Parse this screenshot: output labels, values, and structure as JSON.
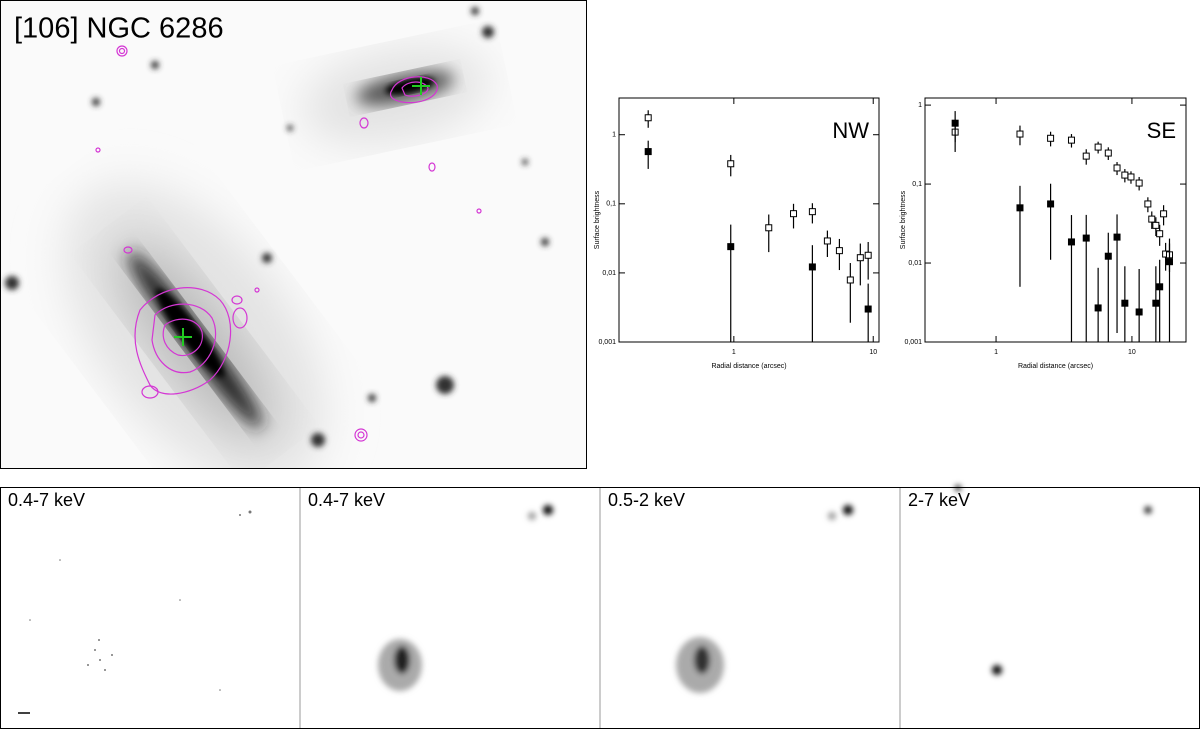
{
  "image_panel": {
    "title": "[106] NGC 6286"
  },
  "bottom_panels": {
    "labels": [
      "0.4-7 keV",
      "0.4-7 keV",
      "0.5-2 keV",
      "2-7 keV"
    ]
  },
  "chart_data": [
    {
      "type": "scatter",
      "title": "NW",
      "x_label": "Radial distance (arcsec)",
      "y_label": "Surface brightness",
      "log_x": true,
      "log_y": true,
      "xlim": [
        0.15,
        11
      ],
      "ylim": [
        0.001,
        3.4
      ],
      "xticks": [
        1,
        10
      ],
      "yticks": [
        {
          "value": 0.001,
          "label": "0,001"
        },
        {
          "value": 0.01,
          "label": "0,01"
        },
        {
          "value": 0.1,
          "label": "0,1"
        },
        1
      ],
      "series": [
        {
          "marker": "open-square",
          "color": "#000000",
          "x": [
            0.243,
            0.95,
            1.78,
            2.68,
            3.66,
            4.69,
            5.72,
            6.85,
            8.08,
            9.2
          ],
          "values": [
            1.76,
            0.38,
            0.045,
            0.072,
            0.077,
            0.029,
            0.021,
            0.0079,
            0.0166,
            0.018
          ],
          "errors": [
            0.5,
            0.13,
            0.025,
            0.028,
            0.025,
            0.012,
            0.01,
            0.006,
            0.01,
            0.01
          ]
        },
        {
          "marker": "filled-square",
          "color": "#000000",
          "x": [
            0.243,
            0.95,
            3.66,
            9.2
          ],
          "values": [
            0.57,
            0.024,
            0.0122,
            0.003
          ],
          "errors": [
            0.25,
            0.026,
            0.013,
            0.004
          ]
        }
      ]
    },
    {
      "type": "scatter",
      "title": "SE",
      "x_label": "Radial distance (arcsec)",
      "y_label": "Surface brightness",
      "log_x": true,
      "log_y": true,
      "xlim": [
        0.3,
        25
      ],
      "ylim": [
        0.001,
        1.23
      ],
      "xticks": [
        1,
        10
      ],
      "yticks": [
        {
          "value": 0.001,
          "label": "0,001"
        },
        {
          "value": 0.01,
          "label": "0,01"
        },
        {
          "value": 0.1,
          "label": "0,1"
        },
        1
      ],
      "series": [
        {
          "marker": "open-square",
          "color": "#000000",
          "x": [
            0.5,
            1.5,
            2.52,
            3.59,
            4.61,
            5.64,
            6.7,
            7.77,
            8.87,
            9.84,
            11.3,
            13.1,
            14.0,
            15.0,
            16.0,
            17.1,
            17.7,
            18.9
          ],
          "values": [
            0.455,
            0.43,
            0.38,
            0.36,
            0.226,
            0.294,
            0.247,
            0.16,
            0.13,
            0.123,
            0.103,
            0.056,
            0.036,
            0.03,
            0.0235,
            0.042,
            0.013,
            0.0127
          ],
          "errors": [
            0.2,
            0.12,
            0.08,
            0.07,
            0.05,
            0.05,
            0.045,
            0.03,
            0.025,
            0.022,
            0.02,
            0.012,
            0.009,
            0.008,
            0.007,
            0.012,
            0.005,
            0.005
          ]
        },
        {
          "marker": "filled-square",
          "color": "#000000",
          "x": [
            0.5,
            1.5,
            2.52,
            3.59,
            4.61,
            5.64,
            6.7,
            7.77,
            8.87,
            11.3,
            15.0,
            16.0,
            18.9
          ],
          "values": [
            0.59,
            0.05,
            0.056,
            0.0185,
            0.0207,
            0.0027,
            0.0122,
            0.0213,
            0.0031,
            0.0024,
            0.0031,
            0.005,
            0.0104
          ],
          "errors": [
            0.25,
            0.045,
            0.045,
            0.022,
            0.02,
            0.006,
            0.012,
            0.02,
            0.006,
            0.006,
            0.006,
            0.006,
            0.01
          ]
        }
      ]
    }
  ]
}
